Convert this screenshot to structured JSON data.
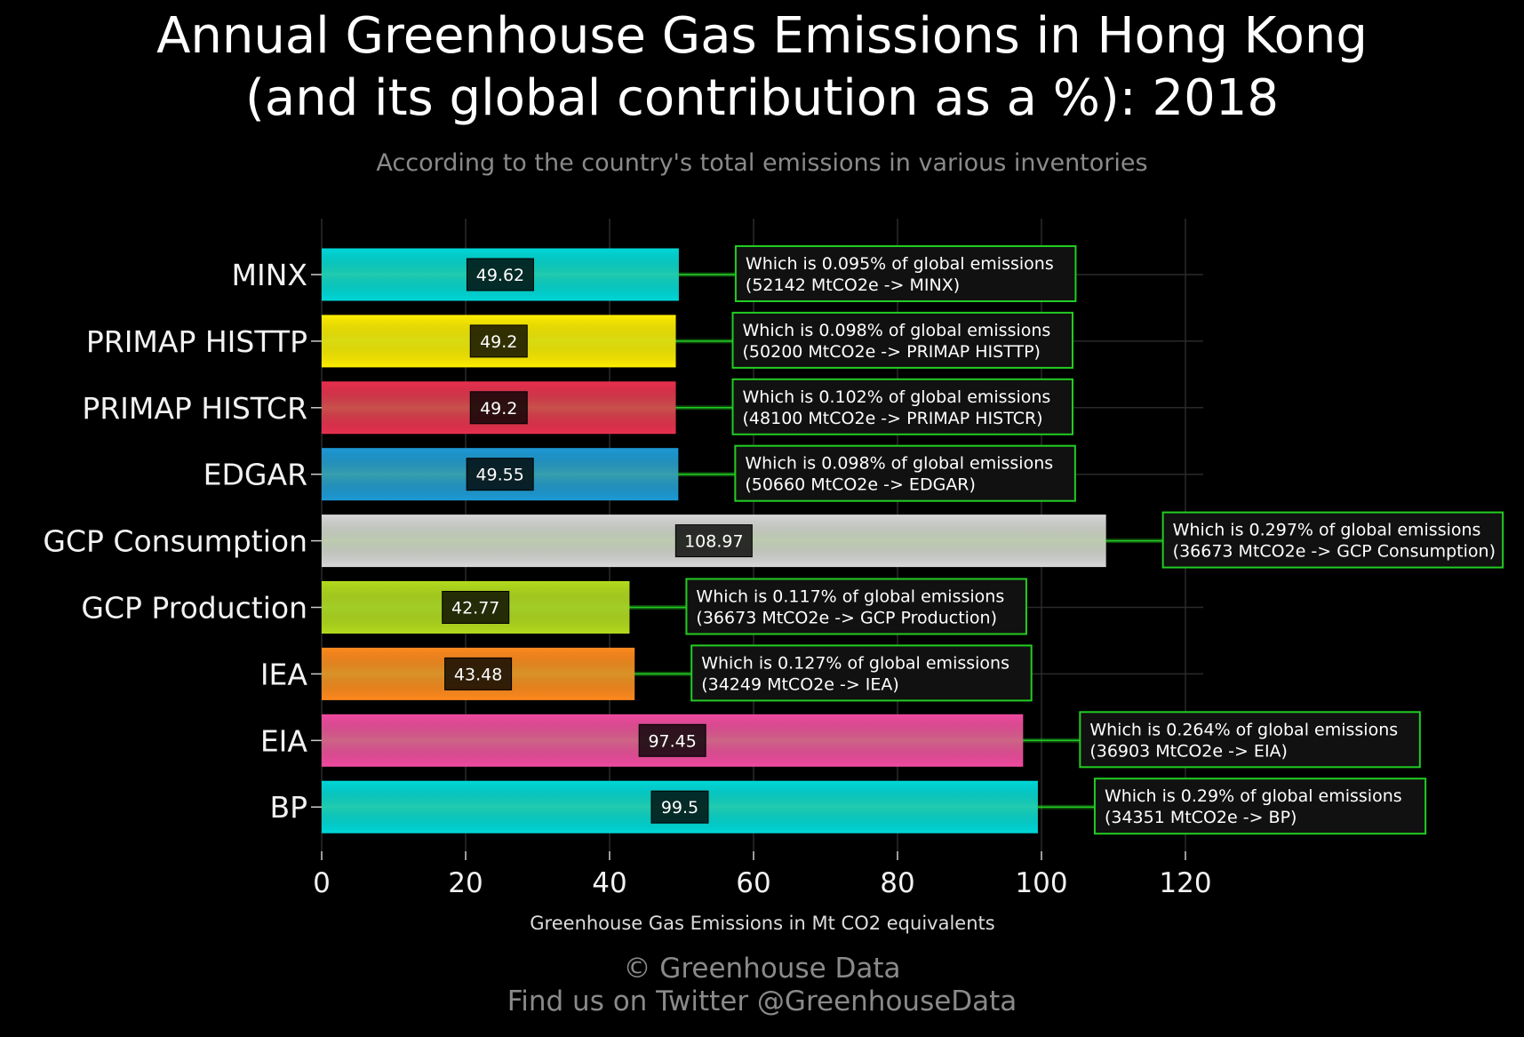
{
  "title_line1": "Annual Greenhouse Gas Emissions in Hong Kong",
  "title_line2": "(and its global contribution as a %): 2018",
  "subtitle": "According to the country's total emissions in various inventories",
  "footer_line1": "© Greenhouse Data",
  "footer_line2": "Find us on Twitter @GreenhouseData",
  "chart_data": {
    "type": "bar",
    "orientation": "horizontal",
    "title": "Annual Greenhouse Gas Emissions in Hong Kong (and its global contribution as a %): 2018",
    "subtitle": "According to the country's total emissions in various inventories",
    "xlabel": "Greenhouse Gas Emissions in Mt CO2 equivalents",
    "ylabel": "",
    "xlim": [
      0,
      130
    ],
    "xticks": [
      0,
      20,
      40,
      60,
      80,
      100,
      120
    ],
    "grid": true,
    "categories": [
      "MINX",
      "PRIMAP HISTTP",
      "PRIMAP HISTCR",
      "EDGAR",
      "GCP Consumption",
      "GCP Production",
      "IEA",
      "EIA",
      "BP"
    ],
    "values": [
      49.62,
      49.2,
      49.2,
      49.55,
      108.97,
      42.77,
      43.48,
      97.45,
      99.5
    ],
    "value_labels": [
      "49.62",
      "49.2",
      "49.2",
      "49.55",
      "108.97",
      "42.77",
      "43.48",
      "97.45",
      "99.5"
    ],
    "colors": [
      "#00d8d8",
      "#ffee00",
      "#e8304f",
      "#1e9ad6",
      "#d8d8d8",
      "#b4dc1e",
      "#ff8a1e",
      "#f04ba0",
      "#00d8d8"
    ],
    "annotations": [
      {
        "line1": "Which is 0.095% of global emissions",
        "line2": "(52142 MtCO2e -> MINX)"
      },
      {
        "line1": "Which is 0.098% of global emissions",
        "line2": "(50200 MtCO2e -> PRIMAP HISTTP)"
      },
      {
        "line1": "Which is 0.102% of global emissions",
        "line2": "(48100 MtCO2e -> PRIMAP HISTCR)"
      },
      {
        "line1": "Which is 0.098% of global emissions",
        "line2": "(50660 MtCO2e -> EDGAR)"
      },
      {
        "line1": "Which is 0.297% of global emissions",
        "line2": "(36673 MtCO2e -> GCP Consumption)"
      },
      {
        "line1": "Which is 0.117% of global emissions",
        "line2": "(36673 MtCO2e -> GCP Production)"
      },
      {
        "line1": "Which is 0.127% of global emissions",
        "line2": "(34249 MtCO2e -> IEA)"
      },
      {
        "line1": "Which is 0.264% of global emissions",
        "line2": "(36903 MtCO2e -> EIA)"
      },
      {
        "line1": "Which is 0.29% of global emissions",
        "line2": "(34351 MtCO2e -> BP)"
      }
    ],
    "annotation_border_color": "#22cc22",
    "background": "#000000"
  }
}
